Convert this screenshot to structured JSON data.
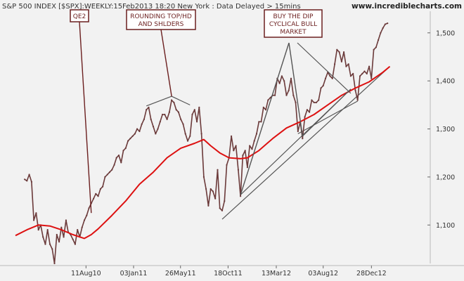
{
  "chart_data": {
    "type": "line",
    "title": "S&P 500 INDEX [$SPX]:WEEKLY:15Feb2013 18:20 New York : Data Delayed > 15mins",
    "source": "www.incrediblecharts.com",
    "ylim": [
      1020,
      1545
    ],
    "y_ticks": [
      1100,
      1200,
      1300,
      1400,
      1500
    ],
    "y_tick_labels": [
      "1,100",
      "1,200",
      "1,300",
      "1,400",
      "1,500"
    ],
    "x_ticks": [
      {
        "label": "11Aug10",
        "date": "2010-08-11"
      },
      {
        "label": "03Jan11",
        "date": "2011-01-03"
      },
      {
        "label": "26May11",
        "date": "2011-05-26"
      },
      {
        "label": "18Oct11",
        "date": "2011-10-18"
      },
      {
        "label": "13Mar12",
        "date": "2012-03-13"
      },
      {
        "label": "03Aug12",
        "date": "2012-08-03"
      },
      {
        "label": "28Dec12",
        "date": "2012-12-28"
      }
    ],
    "xlim": [
      "2010-01-08",
      "2013-06-21"
    ],
    "grid": false,
    "colors": {
      "price": "#6b3a3a",
      "ma": "#dd1111",
      "trend": "#555555",
      "annotation": "#6b1f1f"
    },
    "series": [
      {
        "name": "",
        "role": "price",
        "points": [
          [
            "2010-02-05",
            1195
          ],
          [
            "2010-02-12",
            1192
          ],
          [
            "2010-02-19",
            1205
          ],
          [
            "2010-02-26",
            1190
          ],
          [
            "2010-03-05",
            1110
          ],
          [
            "2010-03-12",
            1125
          ],
          [
            "2010-03-19",
            1090
          ],
          [
            "2010-03-26",
            1100
          ],
          [
            "2010-04-02",
            1075
          ],
          [
            "2010-04-09",
            1060
          ],
          [
            "2010-04-16",
            1090
          ],
          [
            "2010-04-23",
            1060
          ],
          [
            "2010-04-30",
            1050
          ],
          [
            "2010-05-07",
            1020
          ],
          [
            "2010-05-14",
            1080
          ],
          [
            "2010-05-21",
            1065
          ],
          [
            "2010-05-28",
            1095
          ],
          [
            "2010-06-04",
            1075
          ],
          [
            "2010-06-11",
            1110
          ],
          [
            "2010-06-18",
            1085
          ],
          [
            "2010-06-25",
            1080
          ],
          [
            "2010-07-02",
            1070
          ],
          [
            "2010-07-09",
            1060
          ],
          [
            "2010-07-16",
            1090
          ],
          [
            "2010-07-23",
            1075
          ],
          [
            "2010-07-30",
            1095
          ],
          [
            "2010-08-06",
            1110
          ],
          [
            "2010-08-13",
            1120
          ],
          [
            "2010-08-20",
            1135
          ],
          [
            "2010-08-27",
            1145
          ],
          [
            "2010-09-03",
            1155
          ],
          [
            "2010-09-10",
            1165
          ],
          [
            "2010-09-17",
            1160
          ],
          [
            "2010-09-24",
            1175
          ],
          [
            "2010-10-01",
            1180
          ],
          [
            "2010-10-08",
            1200
          ],
          [
            "2010-10-15",
            1205
          ],
          [
            "2010-10-22",
            1210
          ],
          [
            "2010-10-29",
            1215
          ],
          [
            "2010-11-05",
            1225
          ],
          [
            "2010-11-12",
            1240
          ],
          [
            "2010-11-19",
            1245
          ],
          [
            "2010-11-26",
            1230
          ],
          [
            "2010-12-03",
            1255
          ],
          [
            "2010-12-10",
            1260
          ],
          [
            "2010-12-17",
            1275
          ],
          [
            "2010-12-24",
            1280
          ],
          [
            "2010-12-31",
            1285
          ],
          [
            "2011-01-07",
            1290
          ],
          [
            "2011-01-14",
            1300
          ],
          [
            "2011-01-21",
            1295
          ],
          [
            "2011-01-28",
            1310
          ],
          [
            "2011-02-04",
            1320
          ],
          [
            "2011-02-11",
            1340
          ],
          [
            "2011-02-18",
            1345
          ],
          [
            "2011-02-25",
            1320
          ],
          [
            "2011-03-04",
            1305
          ],
          [
            "2011-03-11",
            1290
          ],
          [
            "2011-03-18",
            1300
          ],
          [
            "2011-03-25",
            1315
          ],
          [
            "2011-04-01",
            1330
          ],
          [
            "2011-04-08",
            1330
          ],
          [
            "2011-04-15",
            1320
          ],
          [
            "2011-04-22",
            1335
          ],
          [
            "2011-04-29",
            1360
          ],
          [
            "2011-05-06",
            1355
          ],
          [
            "2011-05-13",
            1340
          ],
          [
            "2011-05-20",
            1335
          ],
          [
            "2011-05-27",
            1320
          ],
          [
            "2011-06-03",
            1310
          ],
          [
            "2011-06-10",
            1290
          ],
          [
            "2011-06-17",
            1275
          ],
          [
            "2011-06-24",
            1285
          ],
          [
            "2011-07-01",
            1330
          ],
          [
            "2011-07-08",
            1340
          ],
          [
            "2011-07-15",
            1315
          ],
          [
            "2011-07-22",
            1345
          ],
          [
            "2011-07-29",
            1290
          ],
          [
            "2011-08-05",
            1200
          ],
          [
            "2011-08-12",
            1175
          ],
          [
            "2011-08-19",
            1140
          ],
          [
            "2011-08-26",
            1175
          ],
          [
            "2011-09-02",
            1170
          ],
          [
            "2011-09-09",
            1155
          ],
          [
            "2011-09-16",
            1215
          ],
          [
            "2011-09-23",
            1135
          ],
          [
            "2011-09-30",
            1130
          ],
          [
            "2011-10-07",
            1150
          ],
          [
            "2011-10-14",
            1225
          ],
          [
            "2011-10-21",
            1240
          ],
          [
            "2011-10-28",
            1285
          ],
          [
            "2011-11-04",
            1255
          ],
          [
            "2011-11-11",
            1265
          ],
          [
            "2011-11-18",
            1215
          ],
          [
            "2011-11-25",
            1160
          ],
          [
            "2011-12-02",
            1245
          ],
          [
            "2011-12-09",
            1255
          ],
          [
            "2011-12-16",
            1220
          ],
          [
            "2011-12-23",
            1265
          ],
          [
            "2011-12-30",
            1258
          ],
          [
            "2012-01-06",
            1275
          ],
          [
            "2012-01-13",
            1290
          ],
          [
            "2012-01-20",
            1315
          ],
          [
            "2012-01-27",
            1315
          ],
          [
            "2012-02-03",
            1345
          ],
          [
            "2012-02-10",
            1340
          ],
          [
            "2012-02-17",
            1360
          ],
          [
            "2012-02-24",
            1365
          ],
          [
            "2012-03-02",
            1370
          ],
          [
            "2012-03-09",
            1370
          ],
          [
            "2012-03-16",
            1405
          ],
          [
            "2012-03-23",
            1395
          ],
          [
            "2012-03-30",
            1410
          ],
          [
            "2012-04-06",
            1400
          ],
          [
            "2012-04-13",
            1370
          ],
          [
            "2012-04-20",
            1380
          ],
          [
            "2012-04-27",
            1405
          ],
          [
            "2012-05-04",
            1370
          ],
          [
            "2012-05-11",
            1355
          ],
          [
            "2012-05-18",
            1295
          ],
          [
            "2012-05-25",
            1315
          ],
          [
            "2012-06-01",
            1280
          ],
          [
            "2012-06-08",
            1325
          ],
          [
            "2012-06-15",
            1340
          ],
          [
            "2012-06-22",
            1335
          ],
          [
            "2012-06-29",
            1360
          ],
          [
            "2012-07-06",
            1355
          ],
          [
            "2012-07-13",
            1355
          ],
          [
            "2012-07-20",
            1360
          ],
          [
            "2012-07-27",
            1385
          ],
          [
            "2012-08-03",
            1390
          ],
          [
            "2012-08-10",
            1405
          ],
          [
            "2012-08-17",
            1418
          ],
          [
            "2012-08-24",
            1410
          ],
          [
            "2012-08-31",
            1405
          ],
          [
            "2012-09-07",
            1435
          ],
          [
            "2012-09-14",
            1465
          ],
          [
            "2012-09-21",
            1460
          ],
          [
            "2012-09-28",
            1440
          ],
          [
            "2012-10-05",
            1460
          ],
          [
            "2012-10-12",
            1430
          ],
          [
            "2012-10-19",
            1435
          ],
          [
            "2012-10-26",
            1410
          ],
          [
            "2012-11-02",
            1415
          ],
          [
            "2012-11-09",
            1380
          ],
          [
            "2012-11-16",
            1360
          ],
          [
            "2012-11-23",
            1410
          ],
          [
            "2012-11-30",
            1415
          ],
          [
            "2012-12-07",
            1420
          ],
          [
            "2012-12-14",
            1415
          ],
          [
            "2012-12-21",
            1430
          ],
          [
            "2012-12-28",
            1405
          ],
          [
            "2013-01-04",
            1465
          ],
          [
            "2013-01-11",
            1470
          ],
          [
            "2013-01-18",
            1485
          ],
          [
            "2013-01-25",
            1500
          ],
          [
            "2013-02-01",
            1510
          ],
          [
            "2013-02-08",
            1518
          ],
          [
            "2013-02-15",
            1520
          ]
        ]
      },
      {
        "name": "",
        "role": "moving-average",
        "points": [
          [
            "2010-01-08",
            1078
          ],
          [
            "2010-02-12",
            1090
          ],
          [
            "2010-03-19",
            1100
          ],
          [
            "2010-04-23",
            1098
          ],
          [
            "2010-05-28",
            1090
          ],
          [
            "2010-07-02",
            1080
          ],
          [
            "2010-08-06",
            1072
          ],
          [
            "2010-08-27",
            1080
          ],
          [
            "2010-09-17",
            1092
          ],
          [
            "2010-10-29",
            1120
          ],
          [
            "2010-12-10",
            1150
          ],
          [
            "2011-01-21",
            1185
          ],
          [
            "2011-03-04",
            1210
          ],
          [
            "2011-04-15",
            1240
          ],
          [
            "2011-05-27",
            1260
          ],
          [
            "2011-07-08",
            1270
          ],
          [
            "2011-08-05",
            1278
          ],
          [
            "2011-08-26",
            1265
          ],
          [
            "2011-09-23",
            1250
          ],
          [
            "2011-10-21",
            1240
          ],
          [
            "2011-11-25",
            1238
          ],
          [
            "2011-12-16",
            1240
          ],
          [
            "2012-01-20",
            1255
          ],
          [
            "2012-03-02",
            1280
          ],
          [
            "2012-04-13",
            1302
          ],
          [
            "2012-05-25",
            1315
          ],
          [
            "2012-07-06",
            1330
          ],
          [
            "2012-08-17",
            1350
          ],
          [
            "2012-09-28",
            1370
          ],
          [
            "2012-11-09",
            1385
          ],
          [
            "2012-12-21",
            1398
          ],
          [
            "2013-02-01",
            1418
          ],
          [
            "2013-02-22",
            1430
          ]
        ]
      }
    ],
    "trendlines": [
      {
        "from": [
          "2011-09-30",
          1112
        ],
        "to": [
          "2013-02-22",
          1430
        ]
      },
      {
        "from": [
          "2012-05-18",
          1290
        ],
        "to": [
          "2012-11-16",
          1358
        ]
      }
    ],
    "annotations": [
      {
        "lines": [
          "QE2"
        ],
        "target": [
          "2010-08-27",
          1125
        ]
      },
      {
        "lines": [
          "ROUNDING TOP/HD",
          "AND SHLDERS"
        ],
        "target": [
          "2011-04-29",
          1365
        ],
        "pointers": [
          [
            "2011-02-11",
            1345
          ],
          [
            "2011-06-24",
            1347
          ]
        ]
      },
      {
        "lines": [
          "BUY THE DIP",
          "CYCLICAL BULL",
          "MARKET"
        ],
        "target": [
          "2012-10-26",
          1380
        ],
        "pointers": [
          [
            "2011-11-25",
            1160
          ],
          [
            "2012-06-01",
            1282
          ]
        ]
      }
    ]
  }
}
